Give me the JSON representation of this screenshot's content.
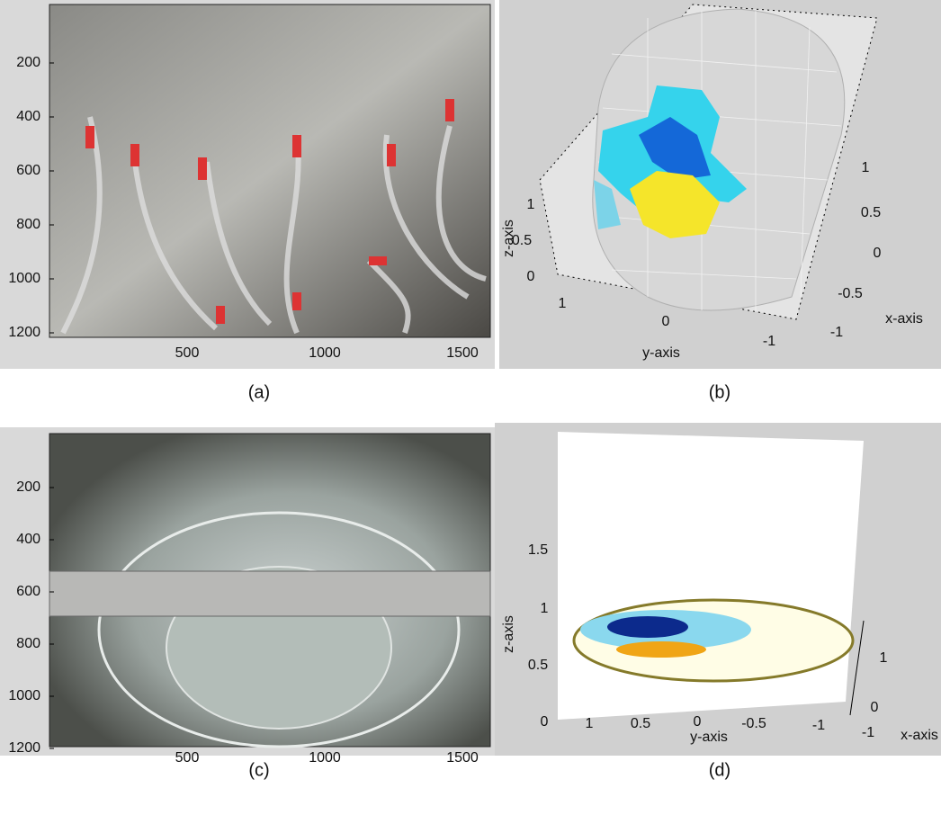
{
  "panels": [
    {
      "caption": "(a)",
      "yticks": [
        200,
        400,
        600,
        800,
        1000,
        1200
      ],
      "xticks": [
        500,
        1000,
        1500
      ]
    },
    {
      "caption": "(b)",
      "zlabel": "z-axis",
      "ylabel": "y-axis",
      "xlabel": "x-axis",
      "zticks": [
        "1",
        "0.5",
        "0"
      ],
      "yticks": [
        "1",
        "0",
        "-1"
      ],
      "xticks": [
        "1",
        "0.5",
        "0",
        "-0.5",
        "-1"
      ]
    },
    {
      "caption": "(c)",
      "yticks": [
        200,
        400,
        600,
        800,
        1000,
        1200
      ],
      "xticks": [
        500,
        1000,
        1500
      ]
    },
    {
      "caption": "(d)",
      "zlabel": "z-axis",
      "ylabel": "y-axis",
      "xlabel": "x-axis",
      "zticks": [
        "0",
        "0.5",
        "1",
        "1.5"
      ],
      "yticks": [
        "1",
        "0.5",
        "0",
        "-0.5",
        "-1"
      ],
      "xticks": [
        "1",
        "0",
        "-1"
      ]
    }
  ]
}
